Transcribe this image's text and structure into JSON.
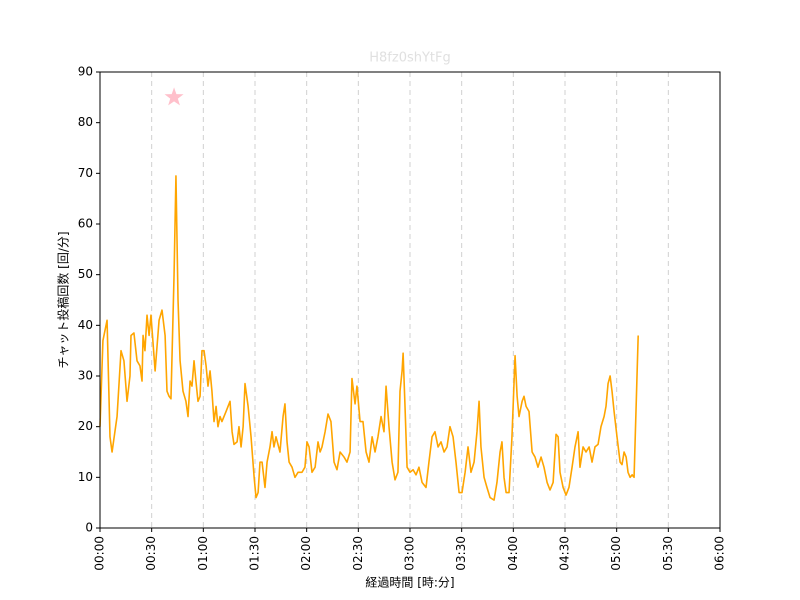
{
  "chart_data": {
    "type": "line",
    "title": "H8fz0shYtFg",
    "x_label": "経過時間 [時:分]",
    "y_label": "チャット投稿回数 [回/分]",
    "color": "#ffa500",
    "title_color": "#e0e0e0",
    "grid": "x-dashed",
    "x": [
      0,
      1.7,
      4.1,
      5.8,
      7.0,
      9.9,
      12.2,
      13.9,
      15.7,
      17.4,
      18.0,
      19.7,
      21.5,
      23.2,
      24.4,
      25.0,
      26.1,
      27.3,
      28.5,
      29.6,
      32.0,
      34.3,
      36.0,
      37.8,
      38.9,
      40.1,
      41.2,
      43.0,
      44.1,
      45.3,
      46.5,
      48.2,
      49.9,
      51.1,
      52.3,
      53.4,
      54.6,
      55.7,
      56.9,
      58.1,
      59.2,
      60.4,
      61.6,
      62.7,
      63.9,
      65.0,
      66.2,
      67.4,
      68.5,
      69.7,
      70.8,
      73.2,
      75.5,
      76.7,
      77.8,
      79.6,
      80.7,
      81.9,
      83.1,
      84.2,
      86.0,
      87.7,
      89.5,
      90.6,
      91.8,
      92.9,
      94.1,
      95.8,
      97.0,
      98.7,
      99.9,
      101.0,
      102.2,
      104.5,
      106.3,
      107.4,
      108.6,
      109.8,
      111.5,
      113.2,
      115.0,
      117.3,
      119.0,
      120.2,
      121.4,
      123.1,
      124.9,
      126.6,
      127.8,
      128.9,
      130.7,
      132.4,
      134.1,
      135.9,
      137.6,
      139.4,
      141.7,
      143.4,
      145.2,
      146.3,
      148.1,
      149.2,
      151.0,
      152.7,
      154.5,
      156.2,
      158.0,
      159.7,
      161.4,
      163.2,
      164.9,
      166.1,
      167.8,
      169.6,
      171.3,
      173.0,
      174.2,
      175.4,
      176.0,
      177.1,
      178.3,
      180.0,
      181.8,
      183.5,
      185.2,
      187.0,
      189.3,
      191.0,
      192.8,
      194.5,
      196.3,
      198.0,
      199.8,
      201.5,
      203.2,
      205.0,
      206.7,
      208.5,
      210.2,
      212.0,
      213.7,
      215.4,
      217.2,
      218.9,
      220.1,
      221.2,
      223.0,
      224.7,
      226.5,
      228.8,
      230.5,
      232.3,
      233.4,
      234.6,
      235.8,
      237.5,
      239.2,
      241.0,
      242.2,
      243.3,
      245.1,
      246.2,
      247.4,
      249.1,
      250.9,
      252.6,
      254.3,
      256.1,
      257.8,
      259.6,
      261.3,
      263.1,
      264.8,
      266.0,
      267.1,
      268.9,
      270.6,
      272.3,
      274.1,
      275.8,
      277.6,
      278.7,
      280.5,
      282.2,
      284.0,
      285.7,
      287.4,
      289.2,
      290.9,
      292.7,
      293.8,
      295.0,
      296.2,
      297.3,
      298.5,
      300.2,
      302.0,
      303.1,
      304.3,
      305.5,
      306.6,
      307.8,
      309.0,
      310.1,
      312.5
    ],
    "values": [
      20,
      37,
      41,
      18,
      15,
      22,
      35,
      33,
      25,
      30,
      38,
      38.5,
      33,
      32,
      29,
      38,
      35,
      42,
      38,
      42,
      31,
      41,
      43,
      38,
      27,
      26,
      25.5,
      50,
      69.5,
      45,
      33,
      27,
      25,
      22,
      29,
      28,
      33,
      29,
      25,
      26,
      35,
      35,
      32,
      28,
      31,
      27,
      21,
      24,
      20,
      22,
      21,
      23,
      25,
      19,
      16.5,
      17,
      20,
      16,
      20,
      28.5,
      24,
      18,
      10,
      6,
      7,
      13,
      13,
      8,
      13,
      16,
      19,
      16,
      18,
      15,
      22,
      24.5,
      17,
      13,
      12,
      10,
      11,
      11,
      12,
      17,
      16,
      11,
      12,
      17,
      15,
      16,
      19,
      22.5,
      21,
      13,
      11.5,
      15,
      14,
      13,
      15,
      29.5,
      24.5,
      28,
      21,
      21,
      15,
      13,
      18,
      15,
      18,
      22,
      19,
      28,
      20,
      13,
      9.5,
      11,
      27,
      31,
      34.5,
      24,
      12,
      11,
      11.5,
      10.5,
      12,
      9,
      8,
      13,
      18,
      19,
      16,
      17,
      15,
      16,
      20,
      18,
      13,
      7,
      7,
      11,
      16,
      11,
      13,
      19,
      25,
      16,
      10,
      8,
      6,
      5.5,
      9,
      15,
      17,
      10,
      7,
      7,
      18,
      34,
      26,
      22,
      25,
      26,
      24,
      23,
      15,
      14,
      12,
      14,
      12,
      9,
      7.5,
      9,
      18.5,
      18,
      11,
      8,
      6.5,
      8,
      12,
      16,
      19,
      12,
      16,
      15,
      16,
      13,
      16,
      16.5,
      20,
      22,
      24,
      28.5,
      30,
      27,
      23,
      18,
      13,
      12.5,
      15,
      14,
      11,
      10,
      10.5,
      10,
      38
    ],
    "annotation_marker": {
      "x": 43.0,
      "y": 85,
      "color": "#ffc0cb"
    },
    "xlim": [
      0,
      360
    ],
    "xticks": [
      {
        "value": 0,
        "label": "00:00"
      },
      {
        "value": 30,
        "label": "00:30"
      },
      {
        "value": 60,
        "label": "01:00"
      },
      {
        "value": 90,
        "label": "01:30"
      },
      {
        "value": 120,
        "label": "02:00"
      },
      {
        "value": 150,
        "label": "02:30"
      },
      {
        "value": 180,
        "label": "03:00"
      },
      {
        "value": 210,
        "label": "03:30"
      },
      {
        "value": 240,
        "label": "04:00"
      },
      {
        "value": 270,
        "label": "04:30"
      },
      {
        "value": 300,
        "label": "05:00"
      },
      {
        "value": 330,
        "label": "05:30"
      },
      {
        "value": 360,
        "label": "06:00"
      }
    ],
    "ylim": [
      0,
      90
    ],
    "yticks": [
      0,
      10,
      20,
      30,
      40,
      50,
      60,
      70,
      80,
      90
    ]
  }
}
